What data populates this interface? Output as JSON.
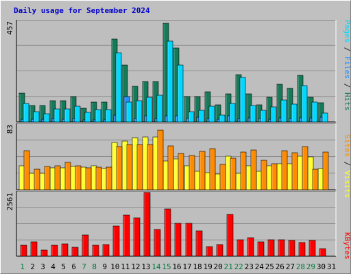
{
  "chart_data": {
    "type": "bar",
    "title": "Daily usage for September 2024",
    "days": [
      "1",
      "2",
      "3",
      "4",
      "5",
      "6",
      "7",
      "8",
      "9",
      "10",
      "11",
      "12",
      "13",
      "14",
      "15",
      "16",
      "17",
      "18",
      "19",
      "20",
      "21",
      "22",
      "23",
      "24",
      "25",
      "26",
      "27",
      "28",
      "29",
      "30",
      "31"
    ],
    "weekend_days": [
      "1",
      "7",
      "8",
      "14",
      "15",
      "21",
      "22",
      "28",
      "29"
    ],
    "weekend_color": "#007c3c",
    "weekday_color": "#000000",
    "panels": [
      {
        "ymax_label": "457",
        "ymax": 457,
        "series": [
          {
            "name": "Hits",
            "color": "#157a59",
            "values": [
              130,
              75,
              75,
              97,
              97,
              115,
              63,
              91,
              91,
              375,
              257,
              162,
              182,
              183,
              447,
              337,
              116,
              114,
              136,
              77,
              126,
              213,
              128,
              78,
              113,
              171,
              151,
              210,
              111,
              87,
              null
            ]
          },
          {
            "name": "Files",
            "color": "#1e90ff",
            "values": [
              12,
              12,
              12,
              14,
              12,
              16,
              10,
              10,
              10,
              30,
              115,
              16,
              29,
              17,
              29,
              28,
              16,
              21,
              14,
              12,
              27,
              16,
              20,
              16,
              13,
              20,
              14,
              19,
              20,
              22,
              null
            ]
          },
          {
            "name": "Pages",
            "color": "#00d8ff",
            "values": [
              85,
              47,
              37,
              59,
              59,
              71,
              44,
              56,
              56,
              313,
              89,
              95,
              113,
              121,
              368,
              259,
              46,
              52,
              71,
              31,
              85,
              201,
              75,
              52,
              67,
              99,
              81,
              166,
              91,
              40,
              null
            ]
          }
        ]
      },
      {
        "ymax_label": "83",
        "ymax": 83,
        "series": [
          {
            "name": "Visits",
            "color": "#ffff33",
            "values": [
              31,
              21,
              21,
              28,
              28,
              30,
              29,
              31,
              27,
              60,
              62,
              66,
              67,
              67,
              37,
              39,
              31,
              24,
              22,
              20,
              43,
              21,
              31,
              24,
              31,
              33,
              33,
              43,
              42,
              27,
              null
            ]
          },
          {
            "name": "Sites",
            "color": "#ff8c00",
            "values": [
              50,
              26,
              30,
              31,
              35,
              31,
              28,
              29,
              29,
              55,
              58,
              58,
              58,
              76,
              56,
              46,
              44,
              49,
              52,
              32,
              40,
              48,
              51,
              38,
              33,
              50,
              47,
              55,
              26,
              48,
              null
            ]
          }
        ]
      },
      {
        "ymax_label": "2561",
        "ymax": 2561,
        "series": [
          {
            "name": "KBytes",
            "color": "#ff0000",
            "values": [
              440,
              570,
              240,
              450,
              500,
              370,
              860,
              450,
              480,
              1210,
              1650,
              1550,
              2561,
              1070,
              1890,
              1310,
              1330,
              1020,
              390,
              480,
              1690,
              670,
              750,
              570,
              650,
              650,
              640,
              550,
              620,
              310,
              null
            ]
          }
        ]
      }
    ],
    "legends": [
      {
        "items": [
          {
            "text": "Pages",
            "color": "#00d8ff"
          },
          {
            "text": " / ",
            "color": "#1e1e1e"
          },
          {
            "text": "Files",
            "color": "#1e90ff"
          },
          {
            "text": " / ",
            "color": "#1e1e1e"
          },
          {
            "text": "Hits",
            "color": "#157a59"
          }
        ]
      },
      {
        "items": [
          {
            "text": "Sites",
            "color": "#ff8c00"
          },
          {
            "text": " / ",
            "color": "#1e1e1e"
          },
          {
            "text": "Visits",
            "color": "#ffff33"
          }
        ]
      },
      {
        "items": [
          {
            "text": "KBytes",
            "color": "#ff0000"
          }
        ]
      }
    ]
  }
}
